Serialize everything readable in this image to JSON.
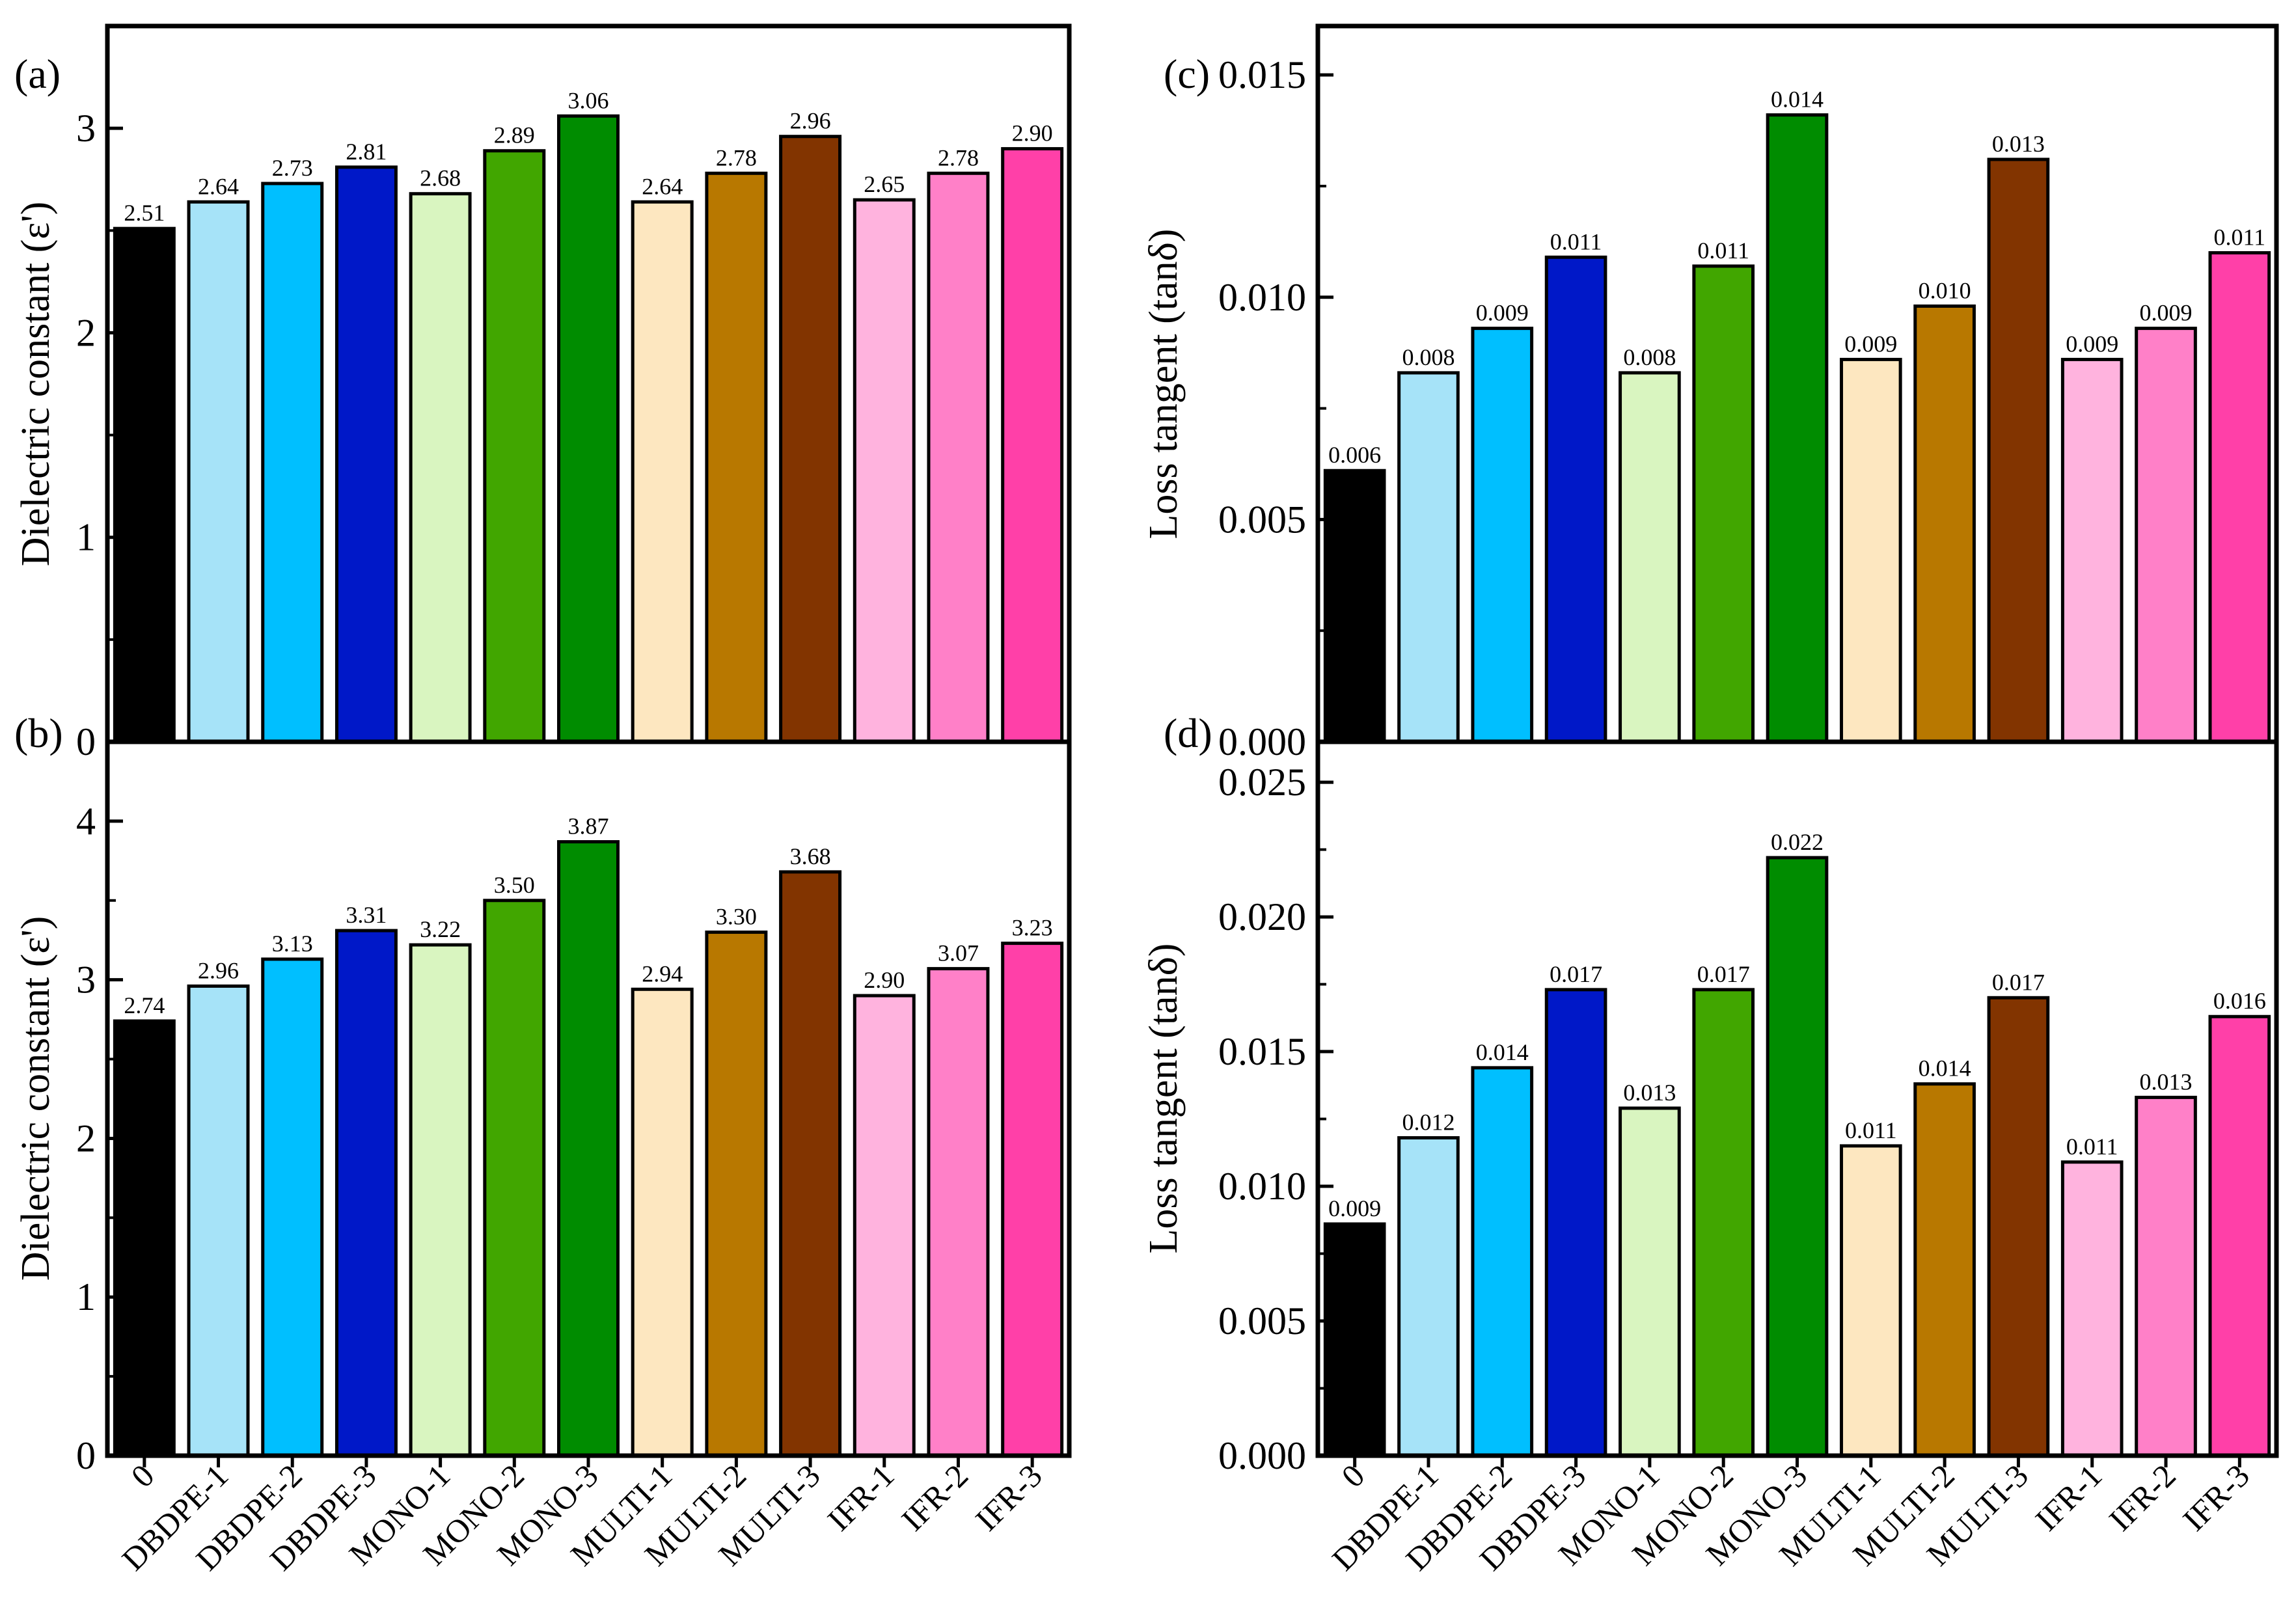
{
  "chart_data": [
    {
      "id": "a",
      "type": "bar",
      "panel_label": "(a)",
      "ylabel": "Dielectric constant (ε')",
      "ylim": [
        0,
        3.5
      ],
      "yticks": [
        "0",
        "1",
        "2",
        "3"
      ],
      "categories": [
        "0",
        "DBDPE-1",
        "DBDPE-2",
        "DBDPE-3",
        "MONO-1",
        "MONO-2",
        "MONO-3",
        "MULTI-1",
        "MULTI-2",
        "MULTI-3",
        "IFR-1",
        "IFR-2",
        "IFR-3"
      ],
      "values": [
        2.51,
        2.64,
        2.73,
        2.81,
        2.68,
        2.89,
        3.06,
        2.64,
        2.78,
        2.96,
        2.65,
        2.78,
        2.9
      ],
      "value_labels": [
        "2.51",
        "2.64",
        "2.73",
        "2.81",
        "2.68",
        "2.89",
        "3.06",
        "2.64",
        "2.78",
        "2.96",
        "2.65",
        "2.78",
        "2.90"
      ]
    },
    {
      "id": "b",
      "type": "bar",
      "panel_label": "(b)",
      "ylabel": "Dielectric constant (ε')",
      "ylim": [
        0,
        4.5
      ],
      "yticks": [
        "0",
        "1",
        "2",
        "3",
        "4"
      ],
      "categories": [
        "0",
        "DBDPE-1",
        "DBDPE-2",
        "DBDPE-3",
        "MONO-1",
        "MONO-2",
        "MONO-3",
        "MULTI-1",
        "MULTI-2",
        "MULTI-3",
        "IFR-1",
        "IFR-2",
        "IFR-3"
      ],
      "values": [
        2.74,
        2.96,
        3.13,
        3.31,
        3.22,
        3.5,
        3.87,
        2.94,
        3.3,
        3.68,
        2.9,
        3.07,
        3.23
      ],
      "value_labels": [
        "2.74",
        "2.96",
        "3.13",
        "3.31",
        "3.22",
        "3.50",
        "3.87",
        "2.94",
        "3.30",
        "3.68",
        "2.90",
        "3.07",
        "3.23"
      ]
    },
    {
      "id": "c",
      "type": "bar",
      "panel_label": "(c)",
      "ylabel": "Loss tangent (tanδ)",
      "ylim": [
        0,
        0.0161
      ],
      "yticks": [
        "0.000",
        "0.005",
        "0.010",
        "0.015"
      ],
      "categories": [
        "0",
        "DBDPE-1",
        "DBDPE-2",
        "DBDPE-3",
        "MONO-1",
        "MONO-2",
        "MONO-3",
        "MULTI-1",
        "MULTI-2",
        "MULTI-3",
        "IFR-1",
        "IFR-2",
        "IFR-3"
      ],
      "values": [
        0.0061,
        0.0083,
        0.0093,
        0.0109,
        0.0083,
        0.0107,
        0.0141,
        0.0086,
        0.0098,
        0.0131,
        0.0086,
        0.0093,
        0.011
      ],
      "value_labels": [
        "0.006",
        "0.008",
        "0.009",
        "0.011",
        "0.008",
        "0.011",
        "0.014",
        "0.009",
        "0.010",
        "0.013",
        "0.009",
        "0.009",
        "0.011"
      ]
    },
    {
      "id": "d",
      "type": "bar",
      "panel_label": "(d)",
      "ylabel": "Loss tangent (tanδ)",
      "ylim": [
        0,
        0.0265
      ],
      "yticks": [
        "0.000",
        "0.005",
        "0.010",
        "0.015",
        "0.020",
        "0.025"
      ],
      "categories": [
        "0",
        "DBDPE-1",
        "DBDPE-2",
        "DBDPE-3",
        "MONO-1",
        "MONO-2",
        "MONO-3",
        "MULTI-1",
        "MULTI-2",
        "MULTI-3",
        "IFR-1",
        "IFR-2",
        "IFR-3"
      ],
      "values": [
        0.0086,
        0.0118,
        0.0144,
        0.0173,
        0.0129,
        0.0173,
        0.0222,
        0.0115,
        0.0138,
        0.017,
        0.0109,
        0.0133,
        0.0163
      ],
      "value_labels": [
        "0.009",
        "0.012",
        "0.014",
        "0.017",
        "0.013",
        "0.017",
        "0.022",
        "0.011",
        "0.014",
        "0.017",
        "0.011",
        "0.013",
        "0.016"
      ]
    }
  ],
  "colors": [
    "#000000",
    "#a6e3f8",
    "#00bfff",
    "#0018c8",
    "#d9f5c0",
    "#41a600",
    "#008c00",
    "#fde7c0",
    "#b87800",
    "#823400",
    "#ffb3de",
    "#ff80c8",
    "#ff40a8"
  ]
}
